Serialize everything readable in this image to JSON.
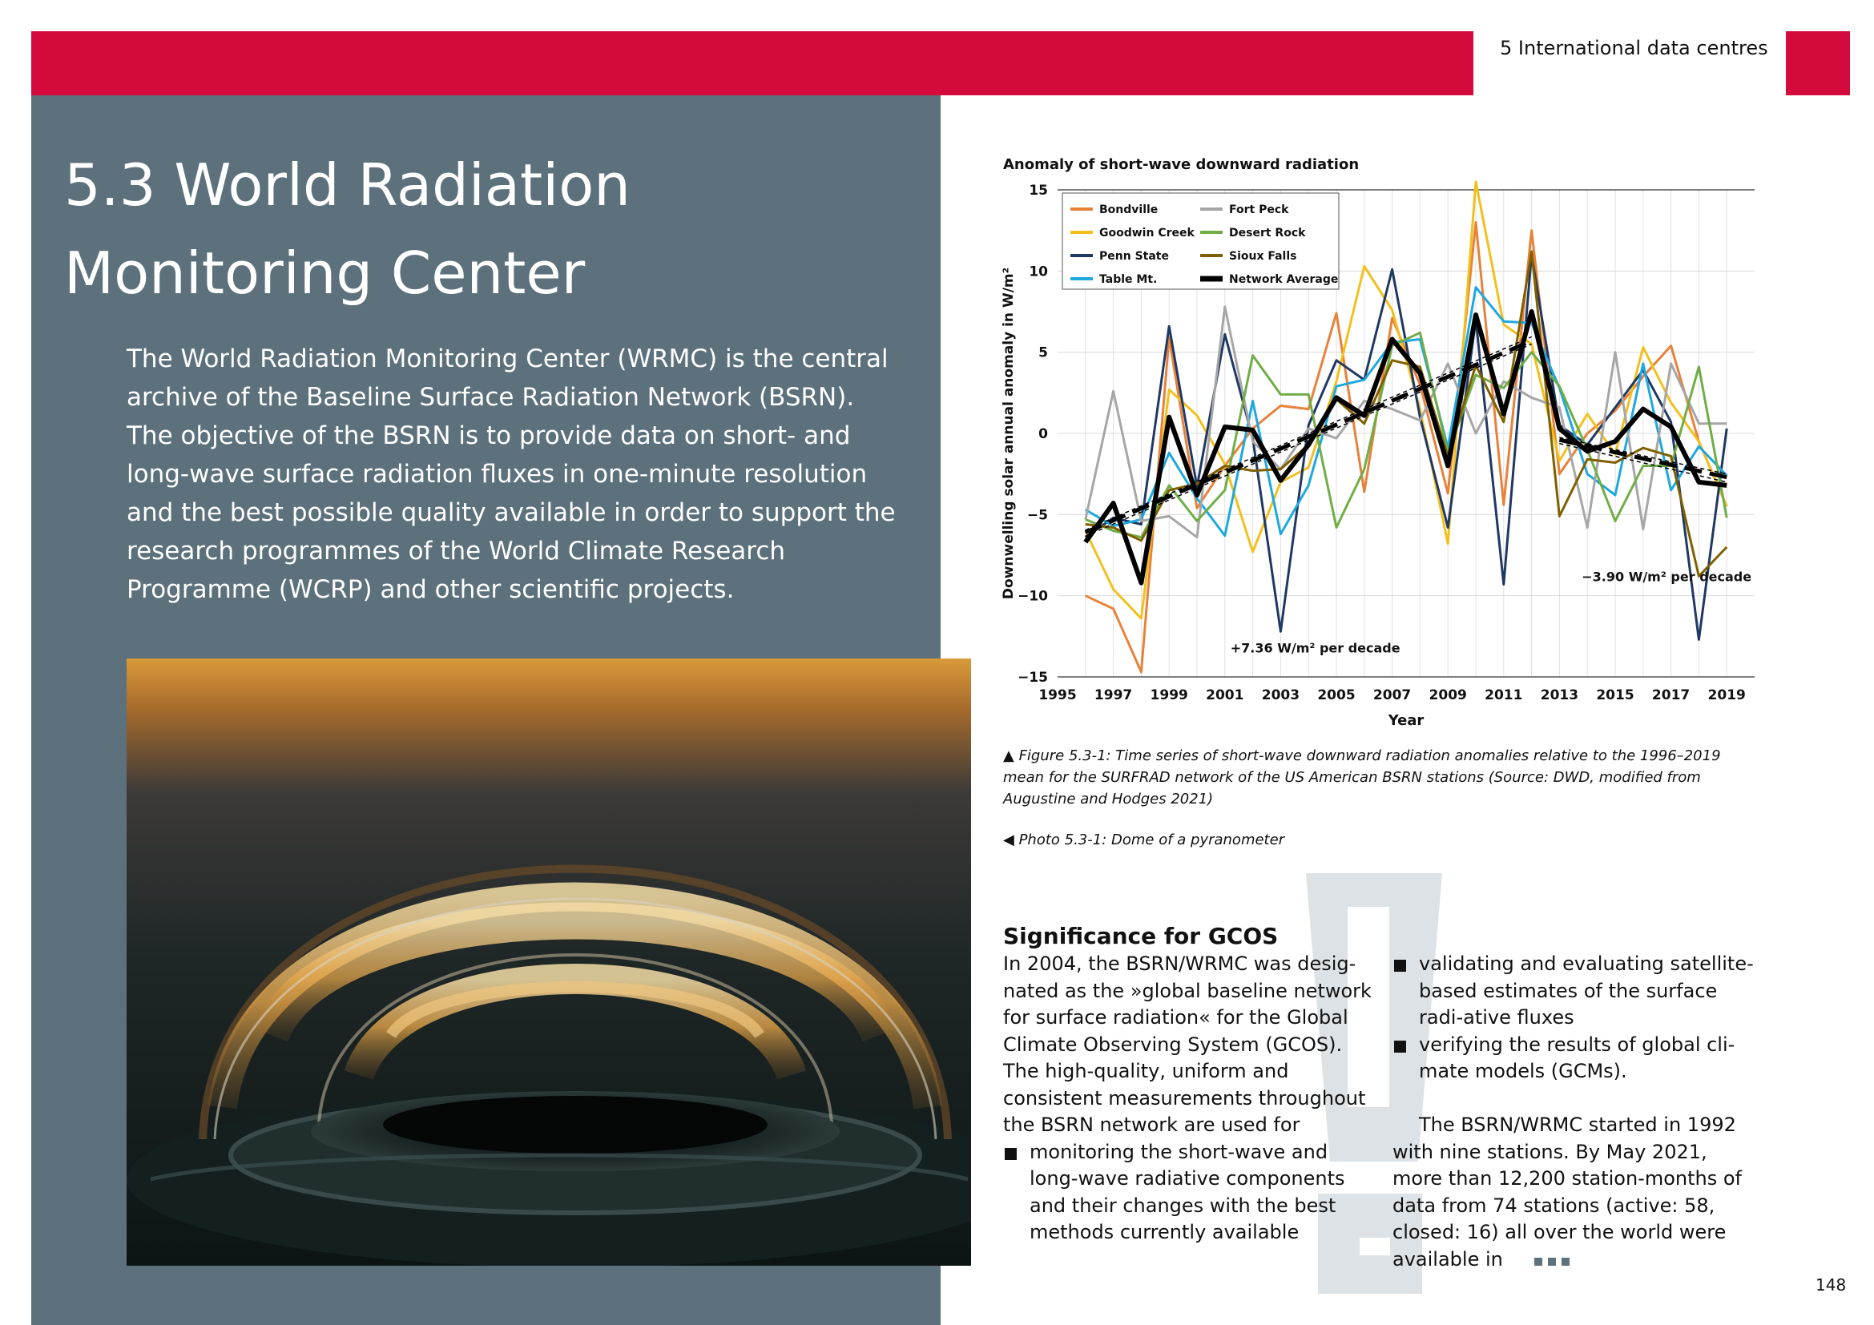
{
  "header": {
    "section_label": "5 International data centres"
  },
  "page": {
    "title": "5.3 World Radiation Monitoring Center",
    "number": "148"
  },
  "intro": "The World Radiation Monitoring Center (WRMC) is the central archive of the Baseline Surface Radiation Network (BSRN). The objective of the BSRN is to provide data on short- and long-wave surface radiation fluxes in one-minute resolution and the best possible quality available in order to support the research programmes of the World Climate Research Programme (WCRP) and other scientific projects.",
  "figure": {
    "caption": "▲ Figure 5.3-1: Time series of short-wave downward radiation anomalies relative to the 1996–2019 mean for the SURFRAD network of the US American BSRN stations (Source: DWD, modified from Augustine and Hodges 2021)"
  },
  "photo": {
    "caption": "◀ Photo 5.3-1: Dome of a pyranometer"
  },
  "significance": {
    "title": "Significance for GCOS",
    "paragraph1": "In 2004, the BSRN/WRMC was desig-nated as the »global baseline network for surface radiation« for the Global Climate Observing System (GCOS). The high-quality, uniform and consistent measurements throughout the BSRN network are used for",
    "bullets": [
      "monitoring the short-wave and long-wave radiative components and their changes with the best methods currently available",
      "validating and evaluating satellite-based estimates of the surface radi-ative fluxes",
      "verifying the results of global cli-mate models (GCMs)."
    ],
    "paragraph2": "The BSRN/WRMC started in 1992 with nine stations. By May 2021, more than 12,200 station-months of data from 74 stations (active: 58, closed: 16) all over the world were available in"
  },
  "chart_data": {
    "type": "line",
    "title": "Anomaly of short-wave downward radiation",
    "xlabel": "Year",
    "ylabel": "Downwelling solar annual anomaly in W/m²",
    "xlim": [
      1995,
      2020
    ],
    "ylim": [
      -15,
      15
    ],
    "xticks": [
      1995,
      1997,
      1999,
      2001,
      2003,
      2005,
      2007,
      2009,
      2011,
      2013,
      2015,
      2017,
      2019
    ],
    "yticks": [
      -15,
      -10,
      -5,
      0,
      5,
      10,
      15
    ],
    "grid": true,
    "legend_position": "top-left",
    "x": [
      1996,
      1997,
      1998,
      1999,
      2000,
      2001,
      2002,
      2003,
      2004,
      2005,
      2006,
      2007,
      2008,
      2009,
      2010,
      2011,
      2012,
      2013,
      2014,
      2015,
      2016,
      2017,
      2018,
      2019
    ],
    "series": [
      {
        "name": "Bondville",
        "color": "#e8813a",
        "width": 3,
        "values": [
          -10,
          -10.8,
          -14.7,
          5.9,
          -4.6,
          -2,
          0.3,
          1.7,
          1.5,
          7.4,
          -3.6,
          7.1,
          3,
          -3.7,
          13,
          -4.4,
          12.5,
          -2.5,
          0,
          1.4,
          3.5,
          5.4,
          -0.5,
          -4.5
        ]
      },
      {
        "name": "Goodwin Creek",
        "color": "#f2c01d",
        "width": 3,
        "values": [
          -6,
          -9.6,
          -11.4,
          2.7,
          1.1,
          -1.9,
          -7.3,
          -3,
          -2.1,
          3.2,
          10.3,
          7.6,
          1.5,
          -6.8,
          15.5,
          6.7,
          5.5,
          -1.7,
          1.2,
          -1.3,
          5.3,
          1.9,
          -0.5,
          -4.5
        ]
      },
      {
        "name": "Penn State",
        "color": "#1f3864",
        "width": 3,
        "values": [
          -6.4,
          -5.2,
          -5.6,
          6.6,
          -3.3,
          6.1,
          -0.3,
          -12.2,
          0.5,
          4.5,
          3.3,
          10.1,
          1,
          -5.8,
          7,
          -9.3,
          11,
          0.5,
          -0.7,
          1.6,
          3.9,
          0.7,
          -12.7,
          0.3
        ]
      },
      {
        "name": "Table Mt.",
        "color": "#1ea8e0",
        "width": 3,
        "values": [
          -4.7,
          -5.7,
          -5.3,
          -1.2,
          -4,
          -6.3,
          2,
          -6.2,
          -3.2,
          2.9,
          3.3,
          5.6,
          5.8,
          -0.9,
          9,
          6.9,
          6.8,
          2.8,
          -2.5,
          -3.8,
          4.3,
          -3.5,
          -0.8,
          -2.6
        ]
      },
      {
        "name": "Fort Peck",
        "color": "#a6a6a6",
        "width": 3,
        "values": [
          -5.3,
          2.6,
          -5.4,
          -5.1,
          -6.4,
          7.8,
          -0.5,
          -2.2,
          0.3,
          -0.3,
          2,
          1.5,
          0.8,
          4.3,
          0,
          3.2,
          2.2,
          1.6,
          -5.8,
          5,
          -5.9,
          4.3,
          0.6,
          0.6
        ]
      },
      {
        "name": "Desert Rock",
        "color": "#70ad47",
        "width": 3,
        "values": [
          -5.3,
          -6,
          -6.4,
          -3.2,
          -5.4,
          -3.5,
          4.8,
          2.4,
          2.4,
          -5.8,
          -2.2,
          5.4,
          6.2,
          -1.2,
          3.6,
          2.8,
          5,
          2.9,
          -1,
          -5.4,
          -2,
          -2,
          4.1,
          -5.2
        ]
      },
      {
        "name": "Sioux Falls",
        "color": "#7f6000",
        "width": 3,
        "values": [
          -5.6,
          -5.8,
          -6.6,
          -3.5,
          -3.1,
          -2,
          -2.3,
          -2.2,
          -0.7,
          2.1,
          0.6,
          4.5,
          4.1,
          -1.4,
          4.2,
          0.7,
          11.2,
          -5.1,
          -1.6,
          -1.8,
          -0.9,
          -1.4,
          -8.8,
          -7
        ]
      },
      {
        "name": "Network Average",
        "color": "#000000",
        "width": 6,
        "values": [
          -6.7,
          -4.3,
          -9.2,
          1,
          -3.8,
          0.4,
          0.2,
          -2.9,
          -0.7,
          2.2,
          1.1,
          5.8,
          3.7,
          -2,
          7.3,
          1.2,
          7.5,
          0.3,
          -1.1,
          -0.5,
          1.5,
          0.4,
          -3,
          -3.2
        ]
      }
    ],
    "trends": [
      {
        "label": "+7.36 W/m² per decade",
        "x": [
          1996,
          2012
        ],
        "y": [
          -6.1,
          5.7
        ]
      },
      {
        "label": "−3.90 W/m² per decade",
        "x": [
          2013,
          2019
        ],
        "y": [
          -0.4,
          -2.7
        ]
      }
    ]
  }
}
